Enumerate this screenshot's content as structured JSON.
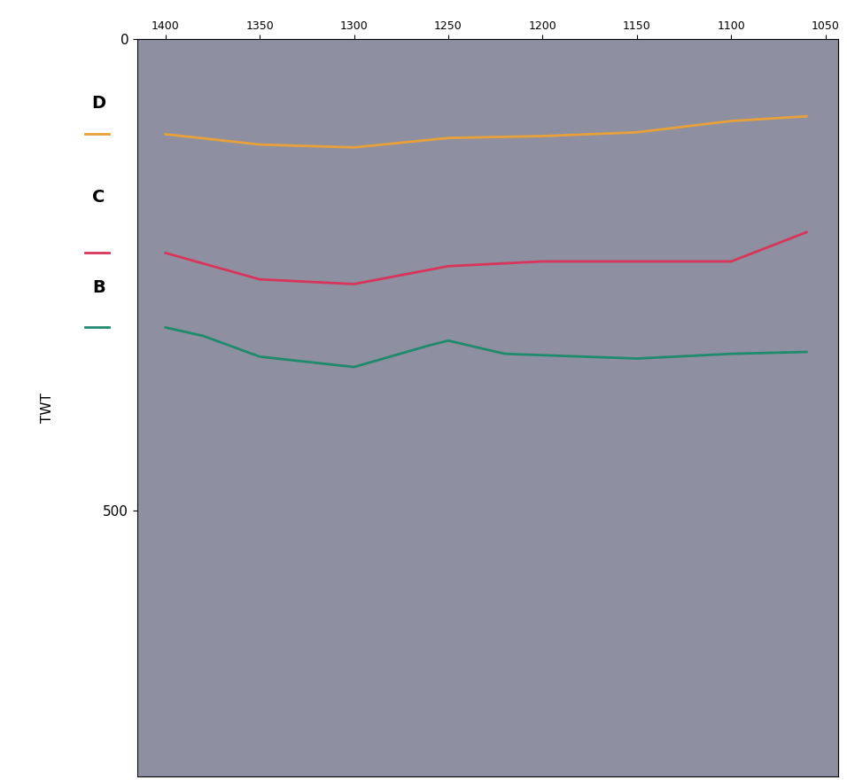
{
  "chart_data": {
    "type": "line",
    "y_label": "TWT",
    "xlim": [
      1415,
      1043
    ],
    "xticks": [
      1400,
      1350,
      1300,
      1250,
      1200,
      1150,
      1100,
      1050
    ],
    "ylim": [
      782,
      0
    ],
    "yticks": [
      0,
      500
    ],
    "grid": false,
    "series": [
      {
        "color": "#e8a13a",
        "x": [
          1400,
          1350,
          1300,
          1250,
          1200,
          1150,
          1100,
          1060
        ],
        "values": [
          101,
          112,
          115,
          105,
          103,
          99,
          87,
          82
        ]
      },
      {
        "color": "#d9345a",
        "x": [
          1400,
          1350,
          1300,
          1250,
          1200,
          1150,
          1100,
          1060
        ],
        "values": [
          227,
          255,
          260,
          241,
          236,
          236,
          236,
          205
        ]
      },
      {
        "color": "#1f8a6e",
        "x": [
          1400,
          1380,
          1350,
          1300,
          1260,
          1250,
          1220,
          1150,
          1100,
          1060
        ],
        "values": [
          306,
          315,
          337,
          348,
          325,
          320,
          334,
          339,
          334,
          332
        ]
      }
    ],
    "annotations": [
      {
        "text": "D",
        "y": 68
      },
      {
        "text": "C",
        "y": 168
      },
      {
        "text": "B",
        "y": 264
      }
    ]
  }
}
